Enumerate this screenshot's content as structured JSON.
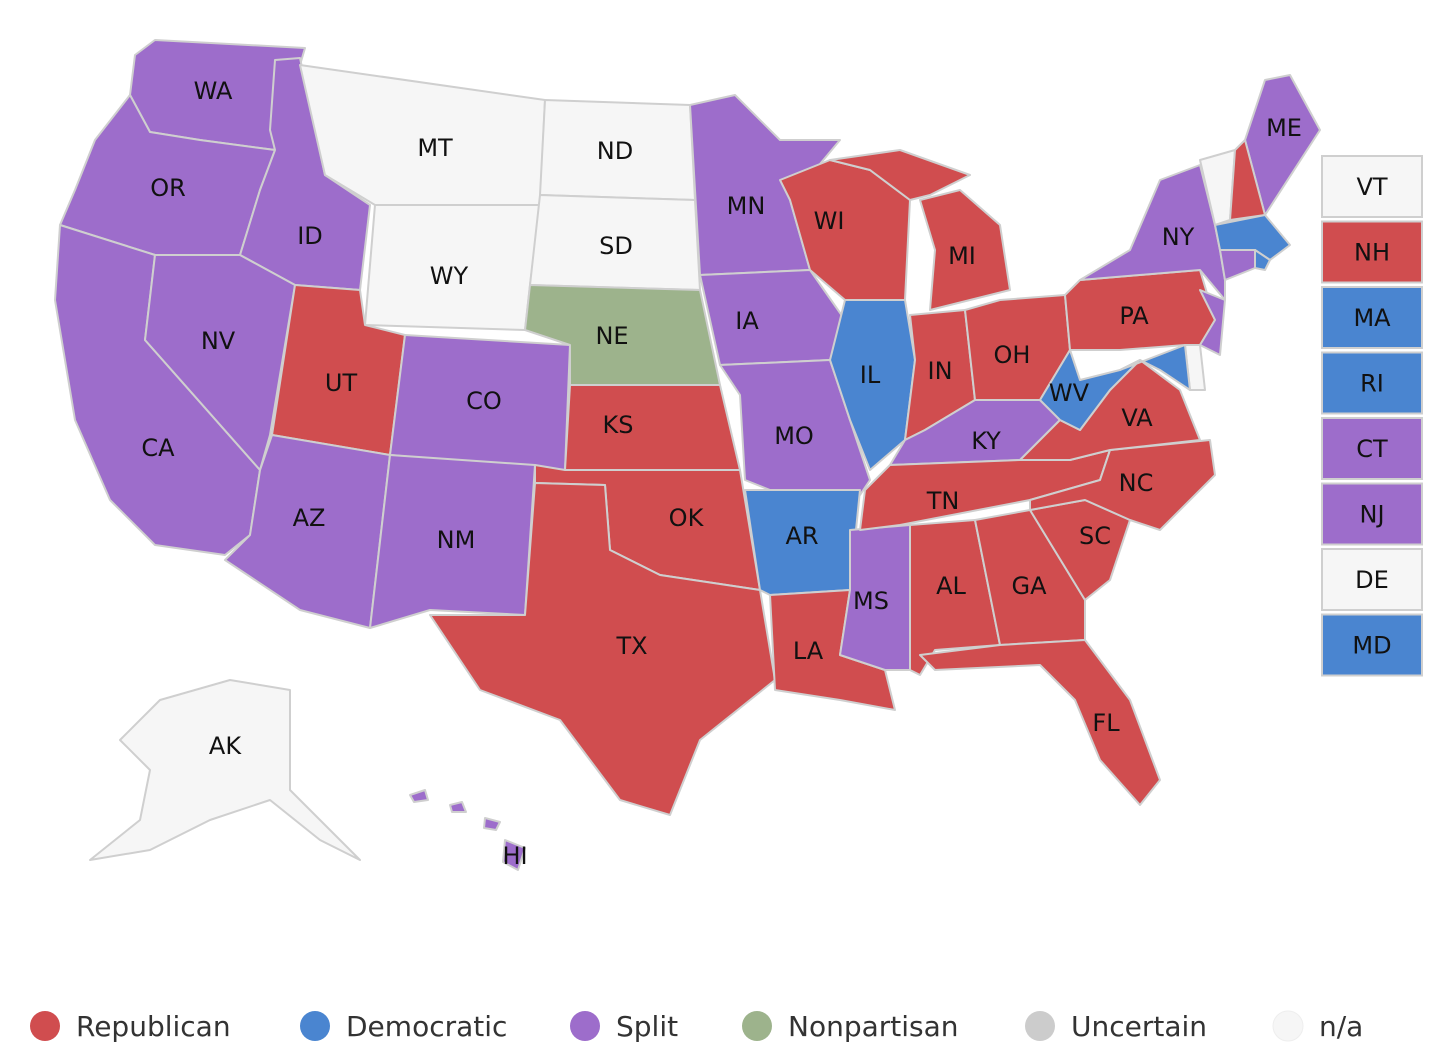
{
  "states": [
    {
      "label": "WA",
      "category": "Split"
    },
    {
      "label": "OR",
      "category": "Split"
    },
    {
      "label": "CA",
      "category": "Split"
    },
    {
      "label": "ID",
      "category": "Split"
    },
    {
      "label": "NV",
      "category": "Split"
    },
    {
      "label": "MT",
      "category": "n/a"
    },
    {
      "label": "WY",
      "category": "n/a"
    },
    {
      "label": "UT",
      "category": "Republican"
    },
    {
      "label": "AZ",
      "category": "Split"
    },
    {
      "label": "CO",
      "category": "Split"
    },
    {
      "label": "NM",
      "category": "Split"
    },
    {
      "label": "ND",
      "category": "n/a"
    },
    {
      "label": "SD",
      "category": "n/a"
    },
    {
      "label": "NE",
      "category": "Nonpartisan"
    },
    {
      "label": "KS",
      "category": "Republican"
    },
    {
      "label": "OK",
      "category": "Republican"
    },
    {
      "label": "TX",
      "category": "Republican"
    },
    {
      "label": "MN",
      "category": "Split"
    },
    {
      "label": "IA",
      "category": "Split"
    },
    {
      "label": "MO",
      "category": "Split"
    },
    {
      "label": "AR",
      "category": "Democratic"
    },
    {
      "label": "LA",
      "category": "Republican"
    },
    {
      "label": "WI",
      "category": "Republican"
    },
    {
      "label": "IL",
      "category": "Democratic"
    },
    {
      "label": "MS",
      "category": "Split"
    },
    {
      "label": "MI",
      "category": "Republican"
    },
    {
      "label": "IN",
      "category": "Republican"
    },
    {
      "label": "KY",
      "category": "Split"
    },
    {
      "label": "TN",
      "category": "Republican"
    },
    {
      "label": "AL",
      "category": "Republican"
    },
    {
      "label": "OH",
      "category": "Republican"
    },
    {
      "label": "GA",
      "category": "Republican"
    },
    {
      "label": "FL",
      "category": "Republican"
    },
    {
      "label": "SC",
      "category": "Republican"
    },
    {
      "label": "NC",
      "category": "Republican"
    },
    {
      "label": "VA",
      "category": "Republican"
    },
    {
      "label": "WV",
      "category": "Democratic"
    },
    {
      "label": "PA",
      "category": "Republican"
    },
    {
      "label": "NY",
      "category": "Split"
    },
    {
      "label": "ME",
      "category": "Split"
    },
    {
      "label": "AK",
      "category": "n/a"
    },
    {
      "label": "HI",
      "category": "Split"
    },
    {
      "label": "VT",
      "category": "n/a"
    },
    {
      "label": "NH",
      "category": "Republican"
    },
    {
      "label": "MA",
      "category": "Democratic"
    },
    {
      "label": "RI",
      "category": "Democratic"
    },
    {
      "label": "CT",
      "category": "Split"
    },
    {
      "label": "NJ",
      "category": "Split"
    },
    {
      "label": "DE",
      "category": "n/a"
    },
    {
      "label": "MD",
      "category": "Democratic"
    }
  ],
  "legend": [
    {
      "label": "Republican",
      "color": "#d04d4f"
    },
    {
      "label": "Democratic",
      "color": "#4a85d0"
    },
    {
      "label": "Split",
      "color": "#9d6dcb"
    },
    {
      "label": "Nonpartisan",
      "color": "#9db38c"
    },
    {
      "label": "Uncertain",
      "color": "#cccccc"
    },
    {
      "label": "n/a",
      "color": "#f6f6f6"
    }
  ]
}
